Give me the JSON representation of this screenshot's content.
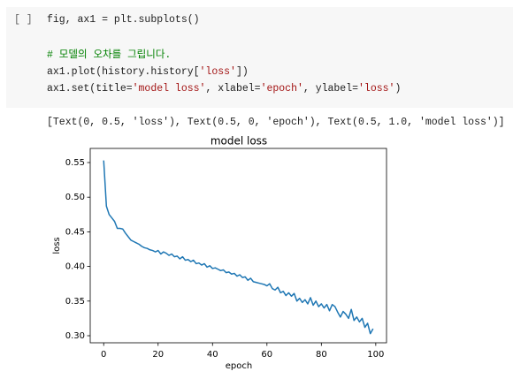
{
  "cell": {
    "prompt": "[ ]",
    "code_blocks": [
      [
        [
          {
            "text": "fig, ax1 = plt.subplots()",
            "color": "#212121"
          }
        ]
      ],
      [
        [
          {
            "text": "# 모델의 오차를 그립니다.",
            "color": "#008000"
          }
        ],
        [
          {
            "text": "ax1.plot(history.history[",
            "color": "#212121"
          },
          {
            "text": "'loss'",
            "color": "#a31515"
          },
          {
            "text": "])",
            "color": "#212121"
          }
        ],
        [
          {
            "text": "ax1.set(title=",
            "color": "#212121"
          },
          {
            "text": "'model loss'",
            "color": "#a31515"
          },
          {
            "text": ", xlabel=",
            "color": "#212121"
          },
          {
            "text": "'epoch'",
            "color": "#a31515"
          },
          {
            "text": ", ylabel=",
            "color": "#212121"
          },
          {
            "text": "'loss'",
            "color": "#a31515"
          },
          {
            "text": ")",
            "color": "#212121"
          }
        ]
      ]
    ]
  },
  "output": {
    "text": "[Text(0, 0.5, 'loss'), Text(0.5, 0, 'epoch'), Text(0.5, 1.0, 'model loss')]"
  },
  "chart_data": {
    "type": "line",
    "title": "model loss",
    "x_label": "epoch",
    "y_label": "loss",
    "x": [
      0,
      1,
      2,
      3,
      4,
      5,
      6,
      7,
      8,
      9,
      10,
      11,
      12,
      13,
      14,
      15,
      16,
      17,
      18,
      19,
      20,
      21,
      22,
      23,
      24,
      25,
      26,
      27,
      28,
      29,
      30,
      31,
      32,
      33,
      34,
      35,
      36,
      37,
      38,
      39,
      40,
      41,
      42,
      43,
      44,
      45,
      46,
      47,
      48,
      49,
      50,
      51,
      52,
      53,
      54,
      55,
      56,
      57,
      58,
      59,
      60,
      61,
      62,
      63,
      64,
      65,
      66,
      67,
      68,
      69,
      70,
      71,
      72,
      73,
      74,
      75,
      76,
      77,
      78,
      79,
      80,
      81,
      82,
      83,
      84,
      85,
      86,
      87,
      88,
      89,
      90,
      91,
      92,
      93,
      94,
      95,
      96,
      97,
      98,
      99
    ],
    "series": [
      {
        "color": "#1f77b4",
        "values": [
          0.553,
          0.487,
          0.475,
          0.47,
          0.465,
          0.455,
          0.455,
          0.454,
          0.448,
          0.443,
          0.438,
          0.436,
          0.434,
          0.432,
          0.429,
          0.427,
          0.426,
          0.424,
          0.423,
          0.421,
          0.423,
          0.418,
          0.421,
          0.419,
          0.416,
          0.418,
          0.414,
          0.415,
          0.411,
          0.414,
          0.409,
          0.41,
          0.407,
          0.409,
          0.404,
          0.405,
          0.402,
          0.404,
          0.399,
          0.401,
          0.397,
          0.398,
          0.396,
          0.394,
          0.395,
          0.391,
          0.392,
          0.389,
          0.39,
          0.386,
          0.388,
          0.384,
          0.385,
          0.38,
          0.383,
          0.378,
          0.377,
          0.376,
          0.375,
          0.374,
          0.372,
          0.375,
          0.368,
          0.366,
          0.37,
          0.362,
          0.364,
          0.358,
          0.362,
          0.357,
          0.361,
          0.35,
          0.354,
          0.348,
          0.352,
          0.346,
          0.355,
          0.344,
          0.35,
          0.342,
          0.346,
          0.34,
          0.345,
          0.336,
          0.345,
          0.342,
          0.334,
          0.327,
          0.335,
          0.331,
          0.325,
          0.338,
          0.322,
          0.327,
          0.32,
          0.325,
          0.312,
          0.318,
          0.303,
          0.31
        ]
      }
    ],
    "xlim": [
      -4.95,
      103.95
    ],
    "ylim": [
      0.2898,
      0.5704
    ],
    "xticks": [
      0,
      20,
      40,
      60,
      80,
      100
    ],
    "yticks": [
      {
        "value": 0.3,
        "label": "0.30"
      },
      0.35,
      {
        "value": 0.4,
        "label": "0.40"
      },
      0.45,
      {
        "value": 0.5,
        "label": "0.50"
      },
      0.55
    ],
    "grid": false
  }
}
